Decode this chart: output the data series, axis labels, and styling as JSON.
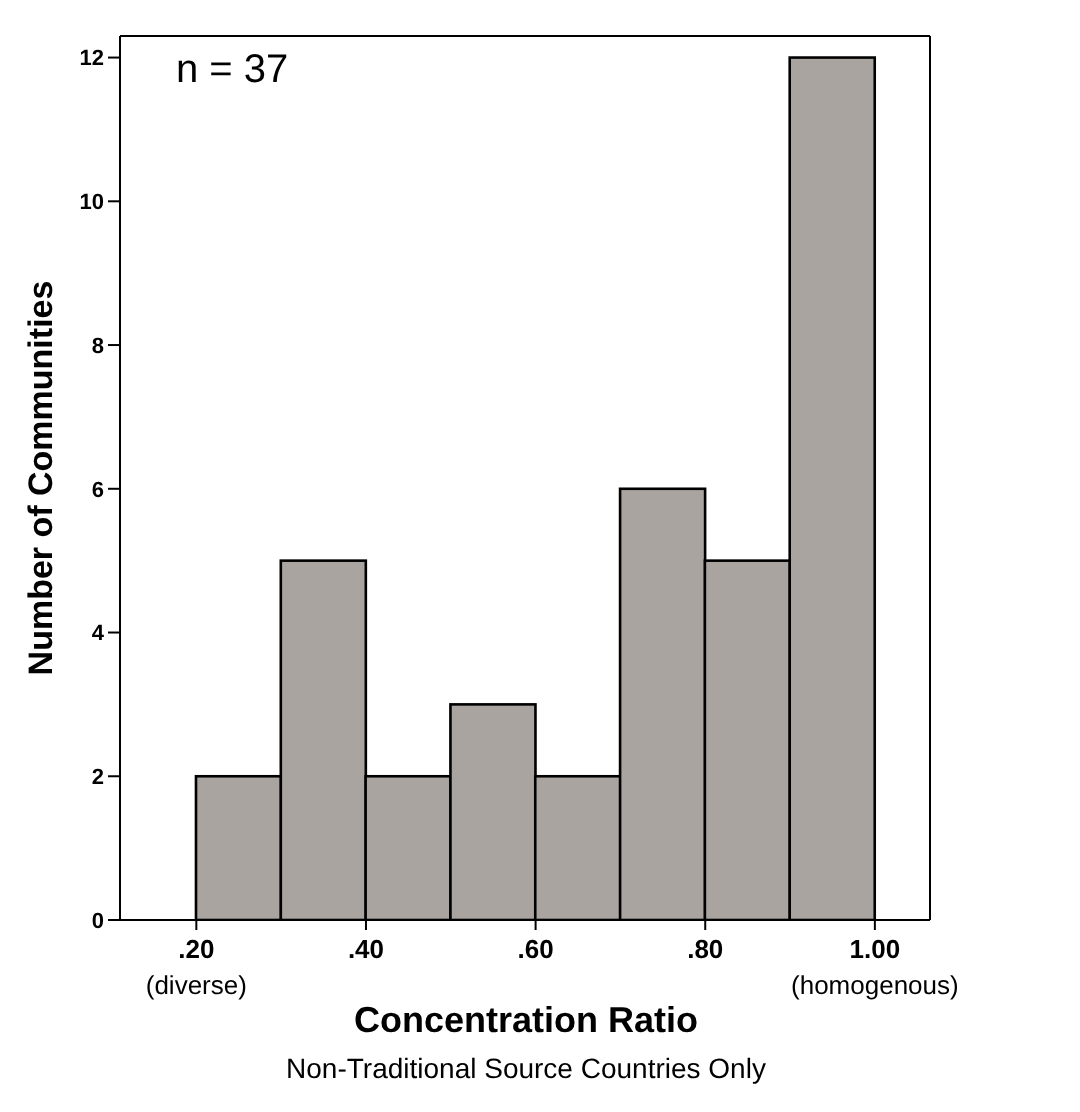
{
  "chart_data": {
    "type": "histogram",
    "xlabel": "Concentration Ratio",
    "ylabel": "Number of Communities",
    "bins": [
      0.2,
      0.3,
      0.4,
      0.5,
      0.6,
      0.7,
      0.8,
      0.9,
      1.0
    ],
    "values": [
      2,
      5,
      2,
      3,
      2,
      6,
      5,
      12
    ],
    "color": "#aaa4a0",
    "xlim": [
      0.11,
      1.065
    ],
    "xticks": [
      {
        "value": 0.2,
        "label": ".20"
      },
      {
        "value": 0.4,
        "label": ".40"
      },
      {
        "value": 0.6,
        "label": ".60"
      },
      {
        "value": 0.8,
        "label": ".80"
      },
      {
        "value": 1.0,
        "label": "1.00"
      }
    ],
    "ylim": [
      0,
      12.3
    ],
    "yticks": [
      0,
      2,
      4,
      6,
      8,
      10,
      12
    ],
    "annotations": [
      "n = 37",
      "(diverse)",
      "(homogenous)",
      "Non-Traditional Source Countries Only"
    ]
  }
}
